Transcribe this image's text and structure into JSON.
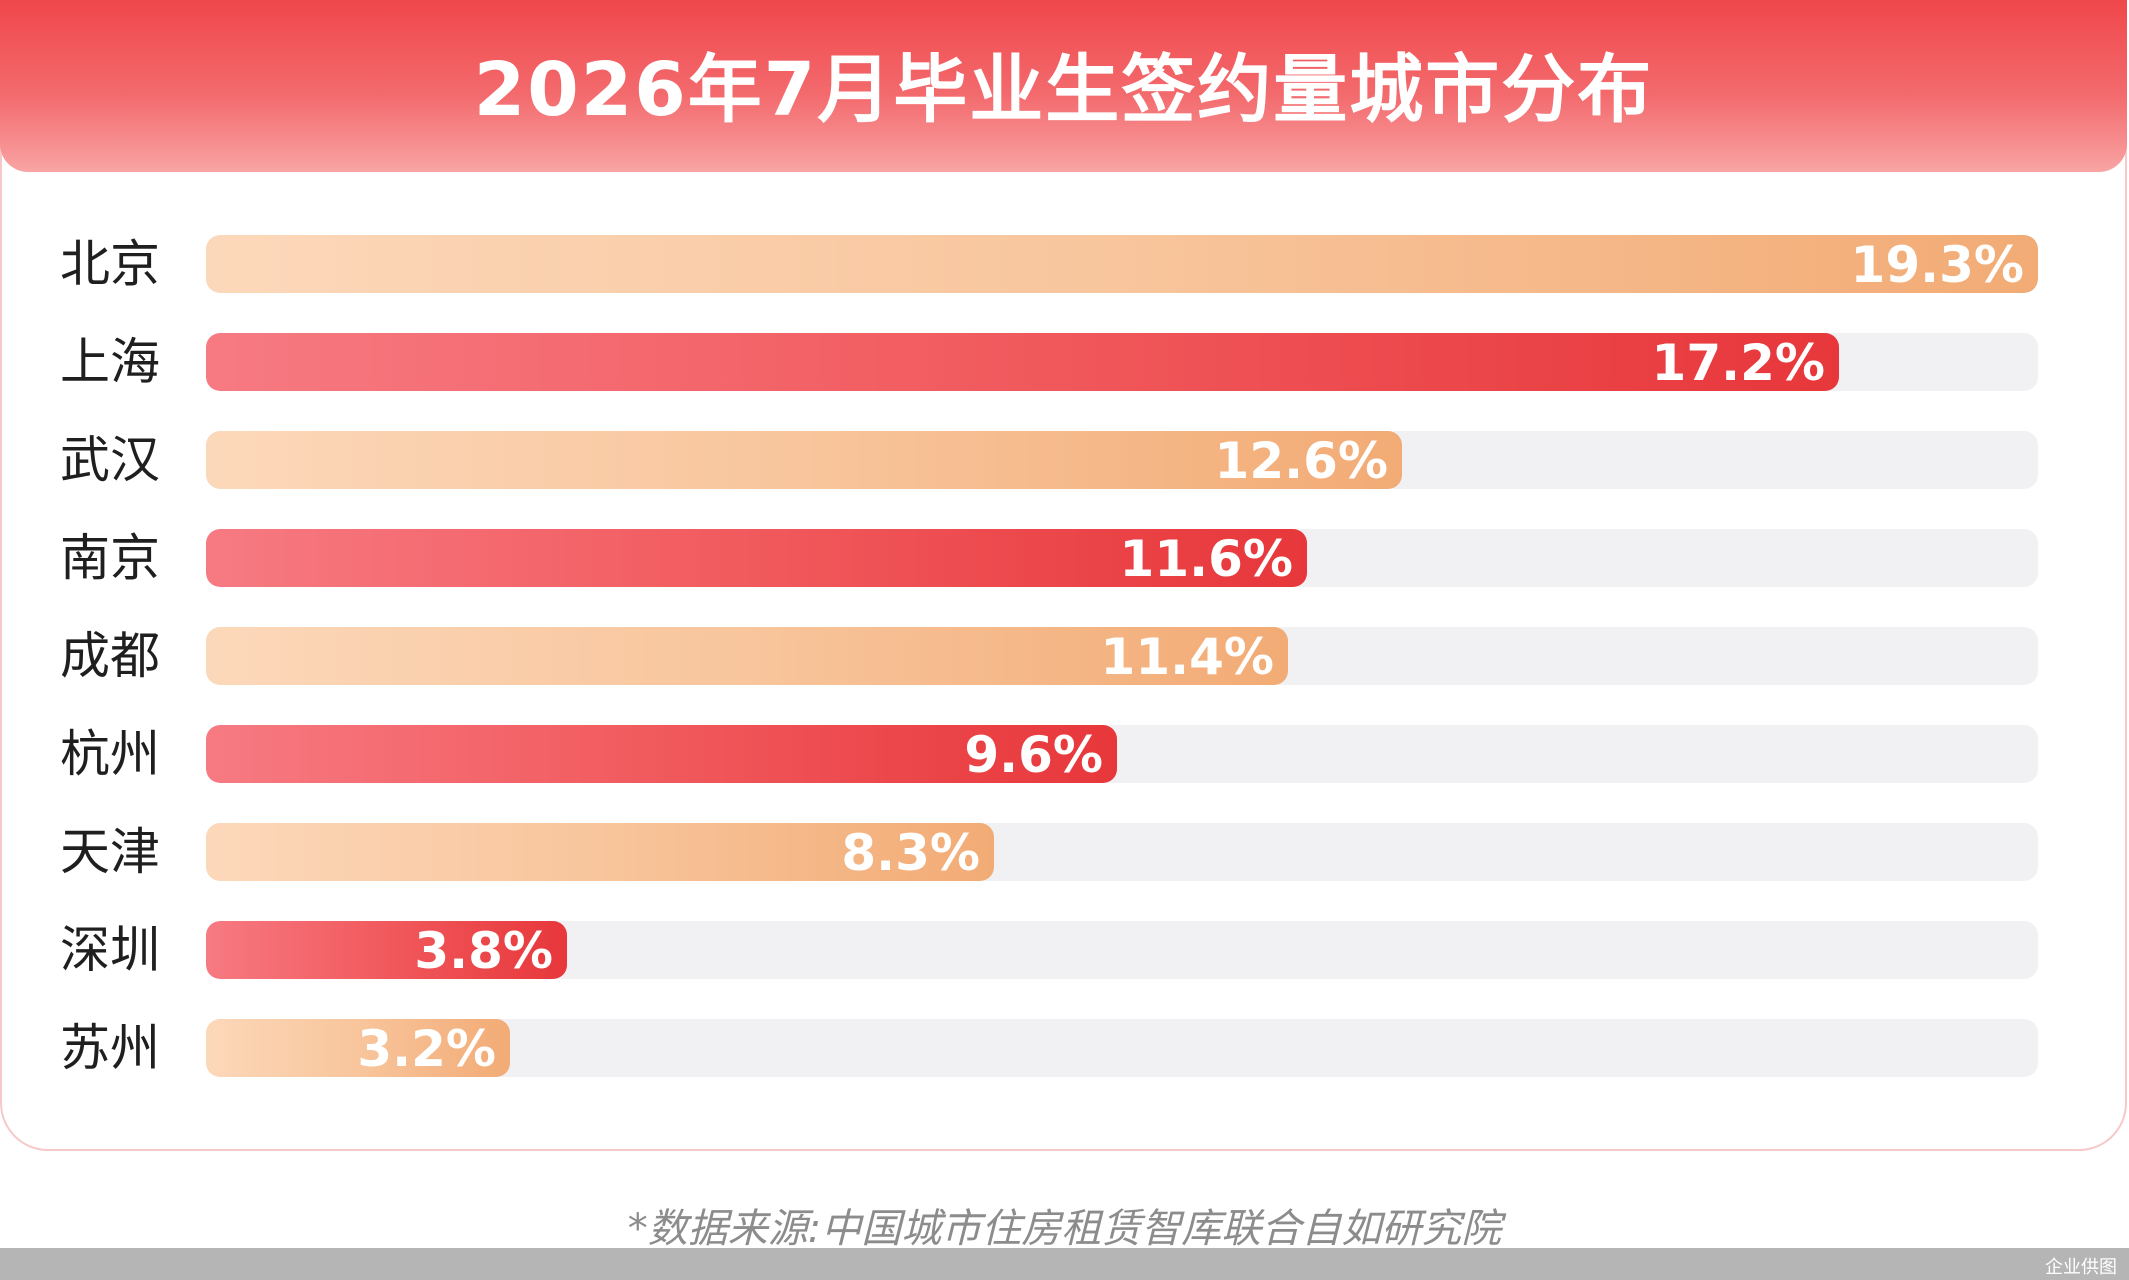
{
  "chart_data": {
    "type": "bar",
    "orientation": "horizontal",
    "title": "2026年7月毕业生签约量城市分布",
    "categories": [
      "北京",
      "上海",
      "武汉",
      "南京",
      "成都",
      "杭州",
      "天津",
      "深圳",
      "苏州"
    ],
    "values": [
      19.3,
      17.2,
      12.6,
      11.6,
      11.4,
      9.6,
      8.3,
      3.8,
      3.2
    ],
    "value_labels": [
      "19.3%",
      "17.2%",
      "12.6%",
      "11.6%",
      "11.4%",
      "9.6%",
      "8.3%",
      "3.8%",
      "3.2%"
    ],
    "unit": "%",
    "xlim": [
      0,
      19.3
    ],
    "grid": false,
    "legend": "none",
    "colors": {
      "peach_start": "#fcd8ba",
      "peach_end": "#f2ab75",
      "red_start": "#f77a82",
      "red_end": "#e7373b",
      "track": "#f1f1f4",
      "header": "#f0474b"
    },
    "bar_color_pattern": [
      "peach",
      "red",
      "peach",
      "red",
      "peach",
      "red",
      "peach",
      "red",
      "peach"
    ]
  },
  "footer": {
    "source": "*数据来源:中国城市住房租赁智库联合自如研究院",
    "watermark": "企业供图"
  }
}
